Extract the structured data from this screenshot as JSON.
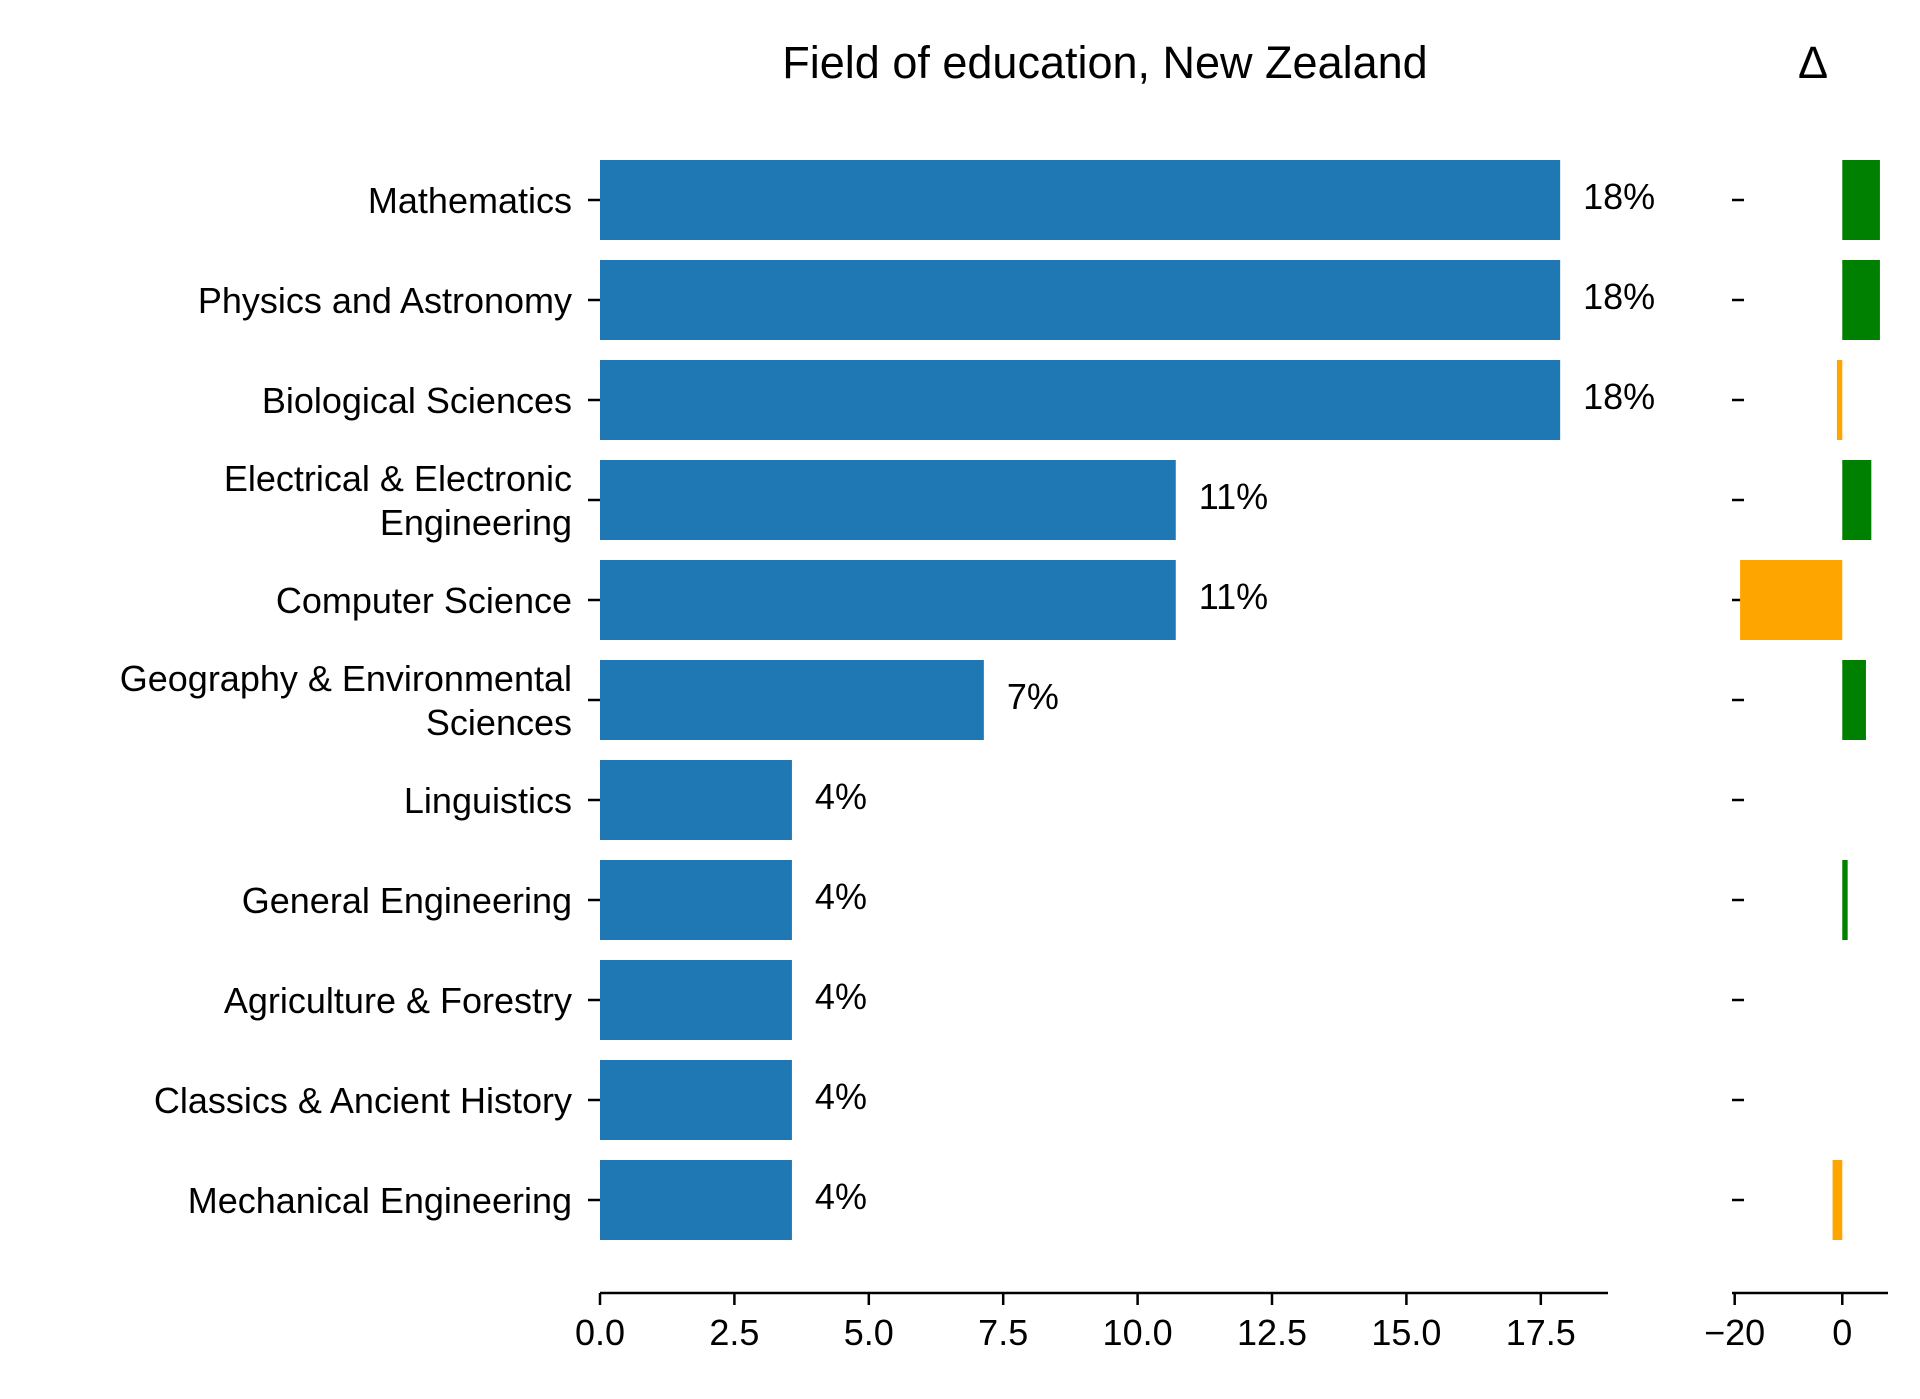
{
  "chart_data": [
    {
      "type": "bar",
      "orientation": "horizontal",
      "title": "Field of education, New Zealand",
      "xlabel": "",
      "ylabel": "",
      "categories": [
        "Mathematics",
        "Physics and Astronomy",
        "Biological Sciences",
        "Electrical & Electronic Engineering",
        "Computer Science",
        "Geography & Environmental Sciences",
        "Linguistics",
        "General Engineering",
        "Agriculture & Forestry",
        "Classics & Ancient History",
        "Mechanical Engineering"
      ],
      "category_lines": [
        [
          "Mathematics"
        ],
        [
          "Physics and Astronomy"
        ],
        [
          "Biological Sciences"
        ],
        [
          "Electrical & Electronic",
          "Engineering"
        ],
        [
          "Computer Science"
        ],
        [
          "Geography & Environmental",
          "Sciences"
        ],
        [
          "Linguistics"
        ],
        [
          "General Engineering"
        ],
        [
          "Agriculture & Forestry"
        ],
        [
          "Classics & Ancient History"
        ],
        [
          "Mechanical Engineering"
        ]
      ],
      "values": [
        17.86,
        17.86,
        17.86,
        10.71,
        10.71,
        7.14,
        3.57,
        3.57,
        3.57,
        3.57,
        3.57
      ],
      "data_labels": [
        "18%",
        "18%",
        "18%",
        "11%",
        "11%",
        "7%",
        "4%",
        "4%",
        "4%",
        "4%",
        "4%"
      ],
      "xlim": [
        0,
        18.75
      ],
      "xticks": [
        0,
        2.5,
        5,
        7.5,
        10,
        12.5,
        15,
        17.5
      ],
      "xtick_labels": [
        "0.0",
        "2.5",
        "5.0",
        "7.5",
        "10.0",
        "12.5",
        "15.0",
        "17.5"
      ],
      "bar_color": "#1f77b4",
      "grid": false
    },
    {
      "type": "bar",
      "orientation": "horizontal",
      "title": "Δ",
      "categories": [
        "Mathematics",
        "Physics and Astronomy",
        "Biological Sciences",
        "Electrical & Electronic Engineering",
        "Computer Science",
        "Geography & Environmental Sciences",
        "Linguistics",
        "General Engineering",
        "Agriculture & Forestry",
        "Classics & Ancient History",
        "Mechanical Engineering"
      ],
      "values": [
        7.0,
        7.0,
        -1.0,
        5.4,
        -19.0,
        4.4,
        0,
        1.0,
        0,
        0,
        -1.8
      ],
      "xlim": [
        -20.5,
        8.5
      ],
      "xticks": [
        -20,
        0
      ],
      "xtick_labels": [
        "−20",
        "0"
      ],
      "positive_color": "#008000",
      "negative_color": "#ffa500",
      "grid": false
    }
  ]
}
